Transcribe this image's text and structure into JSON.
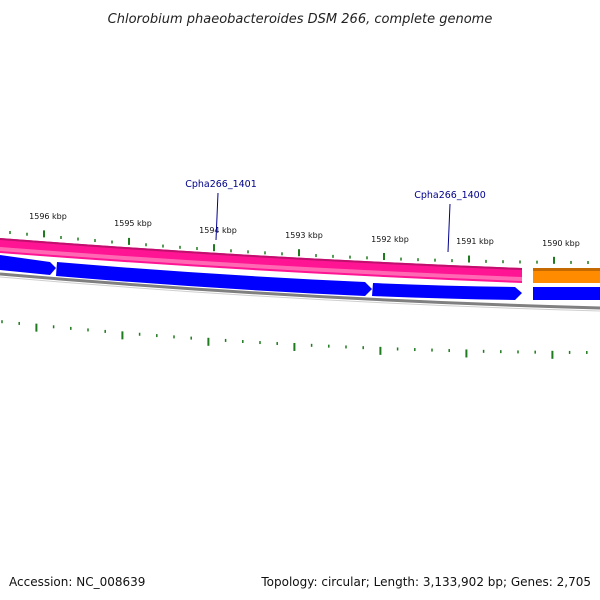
{
  "title": "Chlorobium phaeobacteroides DSM 266, complete genome",
  "footer": {
    "accession": "Accession: NC_008639",
    "summary": "Topology: circular; Length: 3,133,902 bp; Genes: 2,705"
  },
  "scale_ticks": [
    "1596 kbp",
    "1595 kbp",
    "1594 kbp",
    "1593 kbp",
    "1592 kbp",
    "1591 kbp",
    "1590 kbp"
  ],
  "gene_labels": [
    "Cpha266_1401",
    "Cpha266_1400"
  ],
  "colors": {
    "forward_track": "#ff1493",
    "forward_track_light": "#ff69b4",
    "cds_track": "#0000ff",
    "other_feature": "#ff8c00",
    "backbone": "#808080",
    "gc_skew_ticks": "#1e7b1e",
    "label_line": "#00008b"
  }
}
